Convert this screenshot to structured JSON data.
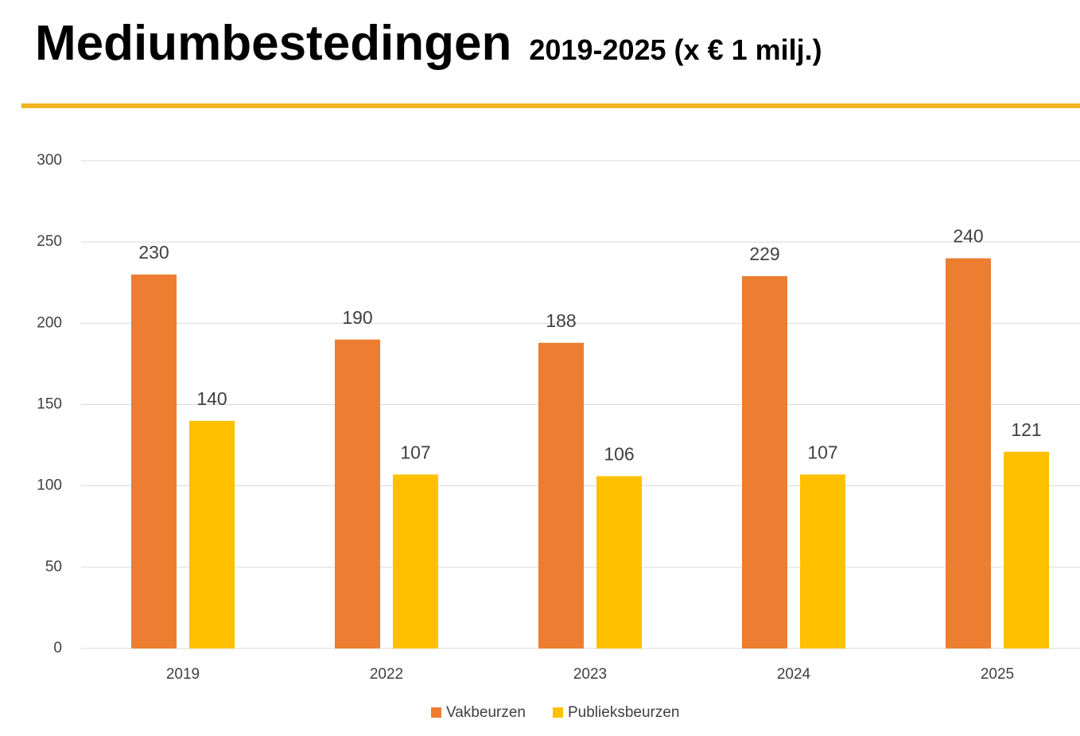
{
  "chart_data": {
    "type": "bar",
    "title": "Mediumbestedingen",
    "subtitle": "2019-2025 (x € 1 milj.)",
    "categories": [
      "2019",
      "2022",
      "2023",
      "2024",
      "2025"
    ],
    "series": [
      {
        "name": "Vakbeurzen",
        "color": "#ed7d31",
        "values": [
          230,
          190,
          188,
          229,
          240
        ]
      },
      {
        "name": "Publieksbeurzen",
        "color": "#ffc000",
        "values": [
          140,
          107,
          106,
          107,
          121
        ]
      }
    ],
    "ylim": [
      0,
      300
    ],
    "yticks": [
      0,
      50,
      100,
      150,
      200,
      250,
      300
    ],
    "grid": true,
    "legend": "bottom"
  }
}
